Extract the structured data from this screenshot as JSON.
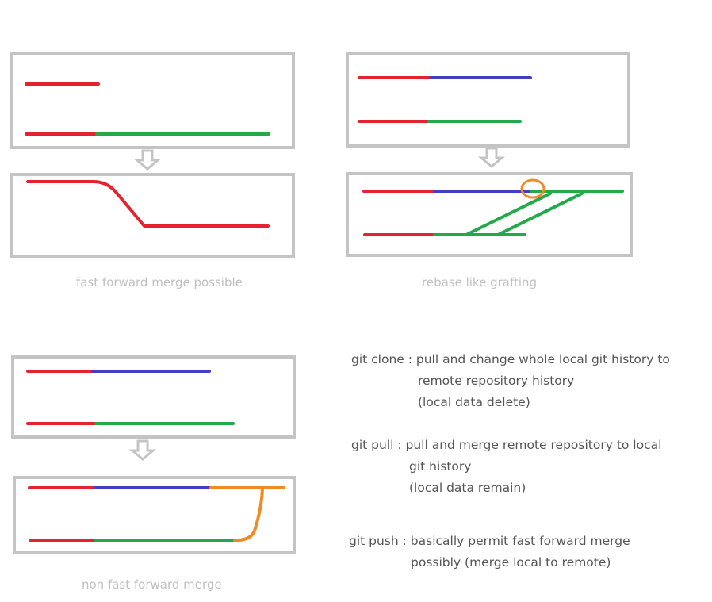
{
  "captions": {
    "fast_forward": "fast forward merge possible",
    "rebase": "rebase like grafting",
    "non_fast_forward": "non fast forward merge"
  },
  "notes": {
    "clone": {
      "line1": "git clone : pull and change whole local git history to",
      "line2": "remote repository history",
      "line3": "(local data delete)"
    },
    "pull": {
      "line1": "git pull : pull and merge remote repository to local",
      "line2": "git history",
      "line3": "(local data remain)"
    },
    "push": {
      "line1": "git push : basically permit fast forward merge",
      "line2": "possibly (merge local to remote)"
    }
  },
  "colors": {
    "frame": "#c4c4c4",
    "arrow": "#c4c4c4",
    "red": "#e52330",
    "blue": "#3f3fc6",
    "green": "#22aa4a",
    "orange": "#f28a24",
    "caption": "#c0c0c0",
    "note": "#555555"
  }
}
